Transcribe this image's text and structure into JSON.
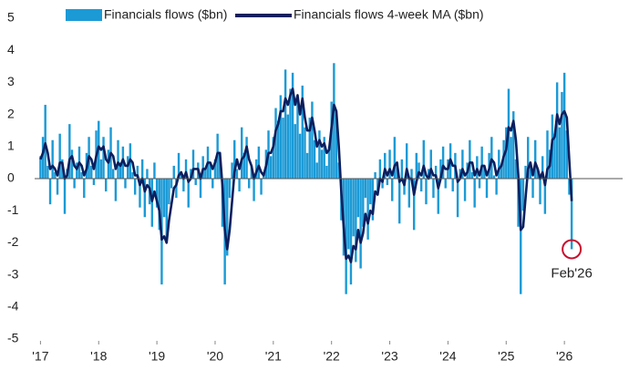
{
  "chart_data": {
    "type": "bar",
    "annotation": "Feb'26",
    "annotation_color": "#c8102e",
    "xlim": [
      2016.9,
      2027.0
    ],
    "xticks": [
      {
        "value": 2017,
        "label": "'17"
      },
      {
        "value": 2018,
        "label": "'18"
      },
      {
        "value": 2019,
        "label": "'19"
      },
      {
        "value": 2020,
        "label": "'20"
      },
      {
        "value": 2021,
        "label": "'21"
      },
      {
        "value": 2022,
        "label": "'22"
      },
      {
        "value": 2023,
        "label": "'23"
      },
      {
        "value": 2024,
        "label": "'24"
      },
      {
        "value": 2025,
        "label": "'25"
      },
      {
        "value": 2026,
        "label": "'26"
      }
    ],
    "ylim": [
      -5,
      5
    ],
    "yticks": [
      -5,
      -4,
      -3,
      -2,
      -1,
      0,
      1,
      2,
      3,
      4,
      5
    ],
    "x": [
      2017.0,
      2017.042,
      2017.083,
      2017.125,
      2017.167,
      2017.208,
      2017.25,
      2017.292,
      2017.333,
      2017.375,
      2017.417,
      2017.458,
      2017.5,
      2017.542,
      2017.583,
      2017.625,
      2017.667,
      2017.708,
      2017.75,
      2017.792,
      2017.833,
      2017.875,
      2017.917,
      2017.958,
      2018.0,
      2018.042,
      2018.083,
      2018.125,
      2018.167,
      2018.208,
      2018.25,
      2018.292,
      2018.333,
      2018.375,
      2018.417,
      2018.458,
      2018.5,
      2018.542,
      2018.583,
      2018.625,
      2018.667,
      2018.708,
      2018.75,
      2018.792,
      2018.833,
      2018.875,
      2018.917,
      2018.958,
      2019.0,
      2019.042,
      2019.083,
      2019.125,
      2019.167,
      2019.208,
      2019.25,
      2019.292,
      2019.333,
      2019.375,
      2019.417,
      2019.458,
      2019.5,
      2019.542,
      2019.583,
      2019.625,
      2019.667,
      2019.708,
      2019.75,
      2019.792,
      2019.833,
      2019.875,
      2019.917,
      2019.958,
      2020.0,
      2020.042,
      2020.083,
      2020.125,
      2020.167,
      2020.208,
      2020.25,
      2020.292,
      2020.333,
      2020.375,
      2020.417,
      2020.458,
      2020.5,
      2020.542,
      2020.583,
      2020.625,
      2020.667,
      2020.708,
      2020.75,
      2020.792,
      2020.833,
      2020.875,
      2020.917,
      2020.958,
      2021.0,
      2021.042,
      2021.083,
      2021.125,
      2021.167,
      2021.208,
      2021.25,
      2021.292,
      2021.333,
      2021.375,
      2021.417,
      2021.458,
      2021.5,
      2021.542,
      2021.583,
      2021.625,
      2021.667,
      2021.708,
      2021.75,
      2021.792,
      2021.833,
      2021.875,
      2021.917,
      2021.958,
      2022.0,
      2022.042,
      2022.083,
      2022.125,
      2022.167,
      2022.208,
      2022.25,
      2022.292,
      2022.333,
      2022.375,
      2022.417,
      2022.458,
      2022.5,
      2022.542,
      2022.583,
      2022.625,
      2022.667,
      2022.708,
      2022.75,
      2022.792,
      2022.833,
      2022.875,
      2022.917,
      2022.958,
      2023.0,
      2023.042,
      2023.083,
      2023.125,
      2023.167,
      2023.208,
      2023.25,
      2023.292,
      2023.333,
      2023.375,
      2023.417,
      2023.458,
      2023.5,
      2023.542,
      2023.583,
      2023.625,
      2023.667,
      2023.708,
      2023.75,
      2023.792,
      2023.833,
      2023.875,
      2023.917,
      2023.958,
      2024.0,
      2024.042,
      2024.083,
      2024.125,
      2024.167,
      2024.208,
      2024.25,
      2024.292,
      2024.333,
      2024.375,
      2024.417,
      2024.458,
      2024.5,
      2024.542,
      2024.583,
      2024.625,
      2024.667,
      2024.708,
      2024.75,
      2024.792,
      2024.833,
      2024.875,
      2024.917,
      2024.958,
      2025.0,
      2025.042,
      2025.083,
      2025.125,
      2025.167,
      2025.208,
      2025.25,
      2025.292,
      2025.333,
      2025.375,
      2025.417,
      2025.458,
      2025.5,
      2025.542,
      2025.583,
      2025.625,
      2025.667,
      2025.708,
      2025.75,
      2025.792,
      2025.833,
      2025.875,
      2025.917,
      2025.958,
      2026.0,
      2026.042,
      2026.083,
      2026.125
    ],
    "series": [
      {
        "name": "Financials flows ($bn)",
        "type": "bar",
        "color": "#1b9ad6",
        "values": [
          0.7,
          1.3,
          2.3,
          0.4,
          -0.8,
          1.2,
          0.2,
          -0.5,
          1.4,
          0.6,
          -1.1,
          0.3,
          1.7,
          0.9,
          -0.3,
          0.5,
          1.0,
          0.2,
          -0.6,
          0.8,
          1.3,
          0.4,
          -0.2,
          1.5,
          1.8,
          0.6,
          1.3,
          -0.4,
          0.9,
          1.6,
          0.3,
          -0.7,
          1.2,
          0.5,
          1.0,
          -0.3,
          0.7,
          1.1,
          0.2,
          -0.5,
          0.4,
          -0.9,
          0.6,
          -1.2,
          0.3,
          -0.8,
          -1.5,
          0.5,
          -0.9,
          -1.6,
          -3.3,
          -1.2,
          -2.0,
          -0.8,
          -0.3,
          0.4,
          -0.6,
          0.8,
          0.2,
          -0.4,
          0.6,
          -0.9,
          0.3,
          0.9,
          -0.2,
          0.5,
          -0.6,
          0.7,
          0.3,
          1.0,
          0.5,
          -0.3,
          0.6,
          1.4,
          0.8,
          -1.5,
          -3.3,
          -2.4,
          -0.6,
          0.5,
          1.2,
          0.3,
          -0.4,
          1.6,
          0.8,
          1.3,
          -0.3,
          0.4,
          -0.7,
          0.6,
          1.0,
          -0.5,
          0.2,
          0.9,
          1.5,
          0.7,
          1.3,
          2.2,
          1.8,
          2.6,
          1.9,
          3.4,
          2.0,
          2.8,
          3.3,
          1.7,
          2.5,
          1.4,
          2.9,
          1.6,
          0.8,
          1.9,
          2.4,
          1.2,
          0.5,
          1.5,
          0.9,
          1.3,
          0.4,
          1.0,
          2.4,
          3.6,
          2.0,
          0.5,
          -1.3,
          -2.4,
          -3.6,
          -2.2,
          -3.3,
          -1.8,
          -2.6,
          -1.2,
          -2.8,
          -1.5,
          -0.6,
          -1.9,
          -0.8,
          -1.3,
          0.2,
          -0.5,
          0.6,
          -0.3,
          0.8,
          -0.2,
          0.9,
          -0.7,
          1.3,
          0.4,
          -1.4,
          0.6,
          -0.5,
          1.1,
          -0.9,
          0.3,
          -1.6,
          0.8,
          0.5,
          -0.4,
          1.2,
          -0.8,
          0.3,
          0.9,
          -0.6,
          0.4,
          -1.1,
          0.6,
          1.0,
          -0.3,
          0.6,
          1.1,
          -0.4,
          0.8,
          -1.2,
          0.3,
          0.9,
          -0.7,
          0.5,
          1.2,
          0.2,
          -0.9,
          0.7,
          -0.3,
          1.0,
          0.4,
          -0.6,
          0.8,
          1.3,
          0.1,
          -0.5,
          0.9,
          0.4,
          1.2,
          1.6,
          2.8,
          1.3,
          2.1,
          0.6,
          -1.5,
          -3.6,
          -1.0,
          0.4,
          1.3,
          0.5,
          -0.6,
          1.2,
          0.3,
          -0.8,
          0.7,
          -1.1,
          1.5,
          0.9,
          2.0,
          1.4,
          3.0,
          1.6,
          2.7,
          3.3,
          1.5,
          -0.5,
          -2.2
        ]
      },
      {
        "name": "Financials flows 4-week MA ($bn)",
        "type": "line",
        "color": "#0b1f5e",
        "values": [
          0.6,
          0.8,
          1.1,
          0.8,
          0.3,
          0.4,
          0.3,
          0.1,
          0.5,
          0.5,
          0.0,
          0.1,
          0.6,
          0.7,
          0.4,
          0.3,
          0.5,
          0.4,
          0.1,
          0.3,
          0.7,
          0.6,
          0.3,
          0.7,
          1.0,
          0.9,
          1.0,
          0.6,
          0.5,
          0.8,
          0.7,
          0.3,
          0.5,
          0.4,
          0.6,
          0.4,
          0.4,
          0.6,
          0.5,
          0.1,
          0.1,
          -0.2,
          0.0,
          -0.4,
          -0.2,
          -0.3,
          -0.7,
          -0.4,
          -0.7,
          -1.0,
          -1.9,
          -1.8,
          -2.0,
          -1.3,
          -0.8,
          -0.3,
          -0.2,
          0.1,
          0.2,
          0.0,
          0.2,
          -0.1,
          0.0,
          0.3,
          0.3,
          0.3,
          0.0,
          0.3,
          0.3,
          0.5,
          0.5,
          0.3,
          0.5,
          0.8,
          0.8,
          -0.2,
          -1.6,
          -2.2,
          -1.6,
          -0.7,
          0.2,
          0.6,
          0.3,
          0.6,
          0.7,
          1.0,
          0.6,
          0.4,
          0.0,
          0.2,
          0.4,
          0.2,
          0.1,
          0.4,
          0.8,
          0.8,
          1.0,
          1.5,
          1.7,
          2.1,
          2.1,
          2.5,
          2.3,
          2.6,
          2.8,
          2.3,
          2.6,
          2.0,
          2.5,
          1.9,
          1.5,
          1.5,
          1.9,
          1.5,
          1.0,
          1.2,
          1.0,
          1.1,
          0.8,
          0.9,
          1.6,
          2.3,
          2.1,
          1.0,
          -0.4,
          -1.5,
          -2.5,
          -2.4,
          -2.6,
          -2.1,
          -2.2,
          -1.6,
          -2.0,
          -1.7,
          -1.1,
          -1.4,
          -1.0,
          -1.1,
          -0.4,
          -0.5,
          0.0,
          -0.1,
          0.3,
          0.1,
          0.3,
          0.1,
          0.4,
          0.5,
          -0.1,
          0.0,
          -0.2,
          0.3,
          0.0,
          0.0,
          -0.5,
          -0.1,
          0.2,
          0.1,
          0.4,
          0.1,
          0.0,
          0.3,
          0.1,
          0.1,
          -0.3,
          0.0,
          0.4,
          0.3,
          0.3,
          0.6,
          0.4,
          0.4,
          -0.1,
          0.0,
          0.3,
          0.1,
          0.2,
          0.5,
          0.5,
          0.1,
          0.3,
          0.1,
          0.4,
          0.4,
          0.1,
          0.3,
          0.6,
          0.5,
          0.1,
          0.3,
          0.4,
          0.7,
          0.9,
          1.6,
          1.5,
          1.8,
          1.2,
          0.1,
          -1.6,
          -1.5,
          -0.6,
          0.3,
          0.5,
          0.1,
          0.5,
          0.3,
          0.0,
          0.2,
          -0.2,
          0.3,
          0.4,
          1.2,
          1.3,
          2.0,
          1.7,
          2.0,
          2.1,
          1.9,
          0.6,
          -0.7
        ]
      }
    ]
  }
}
